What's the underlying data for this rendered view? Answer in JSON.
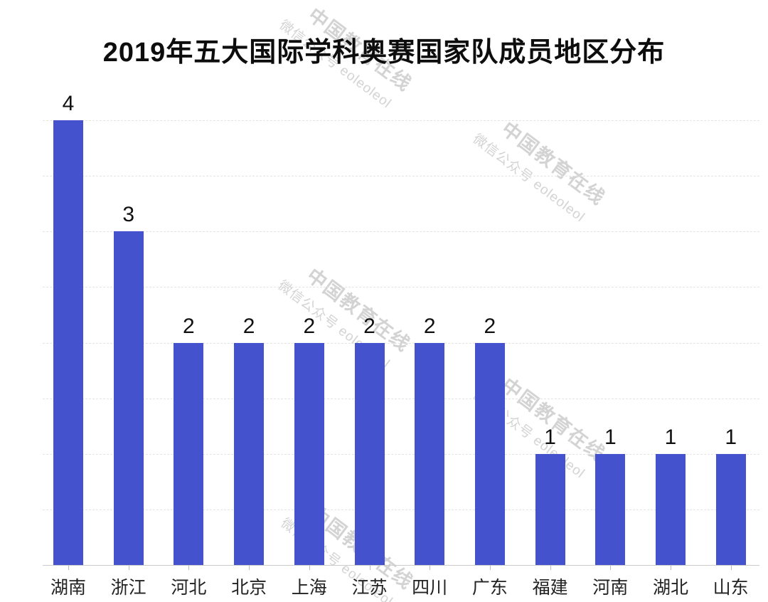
{
  "chart_data": {
    "type": "bar",
    "title": "2019年五大国际学科奥赛国家队成员地区分布",
    "categories": [
      "湖南",
      "浙江",
      "河北",
      "北京",
      "上海",
      "江苏",
      "四川",
      "广东",
      "福建",
      "河南",
      "湖北",
      "山东"
    ],
    "values": [
      4,
      3,
      2,
      2,
      2,
      2,
      2,
      2,
      1,
      1,
      1,
      1
    ],
    "value_labels_shown": true,
    "xlabel": "",
    "ylabel": "",
    "ylim": [
      0,
      4
    ],
    "grid": true,
    "gridline_interval": 0.5,
    "gridline_style": "dashed",
    "legend": "none",
    "colors": {
      "bar": "#4452ce",
      "value_label": "#111111",
      "axis_label": "#222222",
      "gridline": "#e4e4e4",
      "axis_line": "#cccccc",
      "title": "#0d0d0d"
    }
  },
  "watermark": {
    "line1": "中国教育在线",
    "line2": "微信公众号 eoleoleol",
    "color": "#cfcfcf"
  }
}
